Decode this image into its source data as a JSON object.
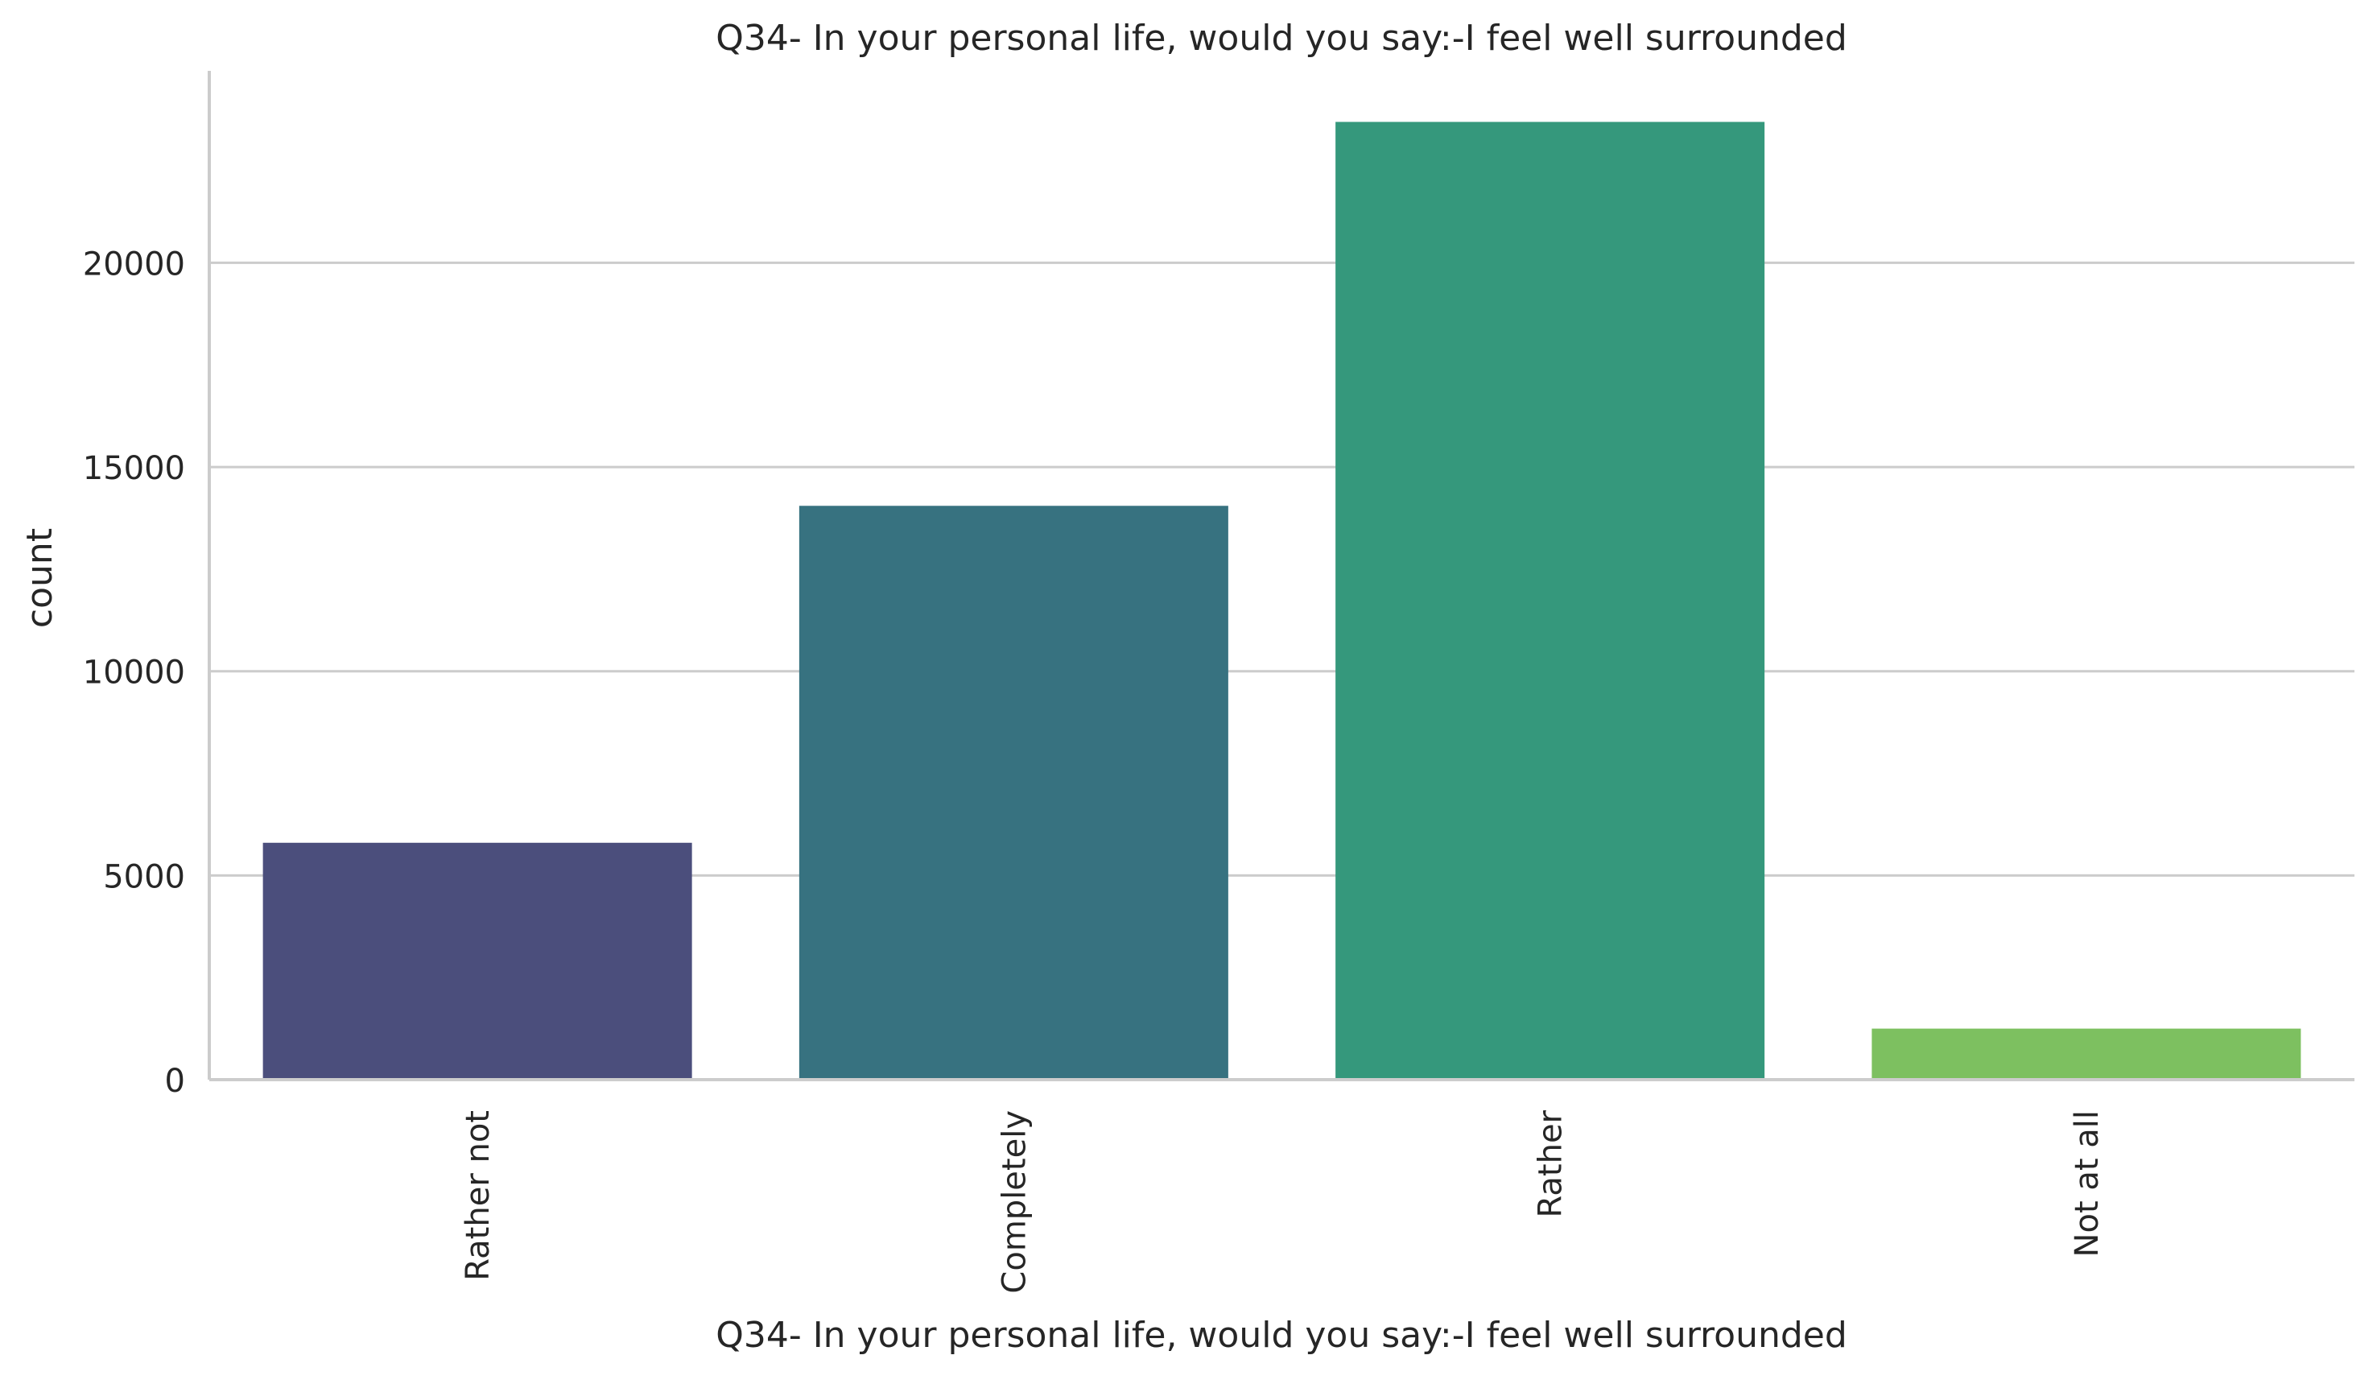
{
  "chart_data": {
    "type": "bar",
    "title": "Q34- In your personal life, would you say:-I feel well surrounded",
    "xlabel": "Q34- In your personal life, would you say:-I feel well surrounded",
    "ylabel": "count",
    "categories": [
      "Rather not",
      "Completely",
      "Rather",
      "Not at all"
    ],
    "values": [
      5800,
      14050,
      23450,
      1250
    ],
    "colors": [
      "#4b4e7c",
      "#377280",
      "#35987c",
      "#7dc060"
    ],
    "ylim": [
      0,
      24700
    ],
    "yticks": [
      0,
      5000,
      10000,
      15000,
      20000
    ],
    "ytick_labels": [
      "0",
      "5000",
      "10000",
      "15000",
      "20000"
    ],
    "grid": "horizontal",
    "legend": "none"
  }
}
